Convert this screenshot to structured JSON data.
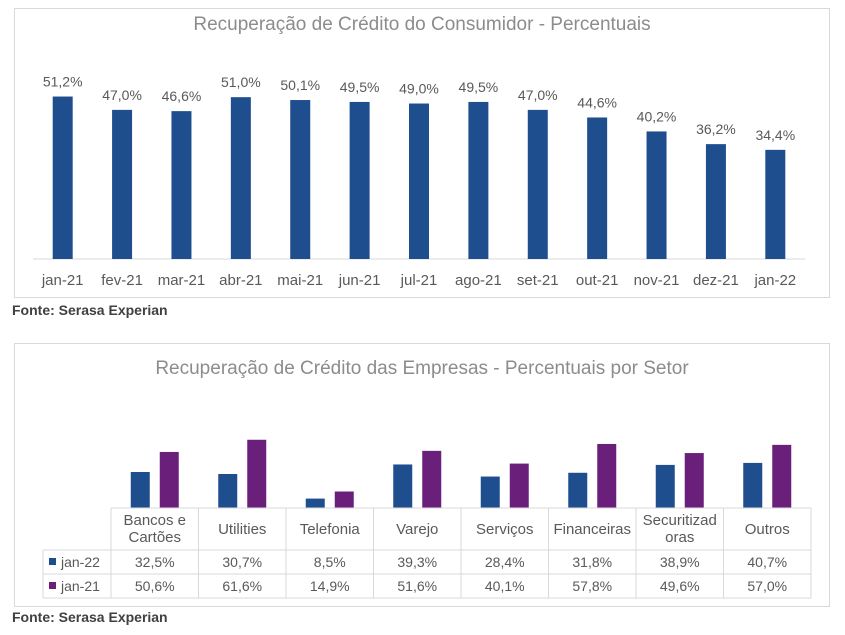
{
  "colors": {
    "consumer_bar": "#1f4e8f",
    "jan22": "#1f4e8f",
    "jan21": "#6a1f7a",
    "text": "#595959",
    "title": "#8c8c8c"
  },
  "source_label_1": "Fonte: Serasa Experian",
  "source_label_2": "Fonte: Serasa Experian",
  "chart_data": [
    {
      "type": "bar",
      "title": "Recuperação de Crédito do Consumidor - Percentuais",
      "categories": [
        "jan-21",
        "fev-21",
        "mar-21",
        "abr-21",
        "mai-21",
        "jun-21",
        "jul-21",
        "ago-21",
        "set-21",
        "out-21",
        "nov-21",
        "dez-21",
        "jan-22"
      ],
      "values": [
        51.2,
        47.0,
        46.6,
        51.0,
        50.1,
        49.5,
        49.0,
        49.5,
        47.0,
        44.6,
        40.2,
        36.2,
        34.4
      ],
      "value_labels": [
        "51,2%",
        "47,0%",
        "46,6%",
        "51,0%",
        "50,1%",
        "49,5%",
        "49,0%",
        "49,5%",
        "47,0%",
        "44,6%",
        "40,2%",
        "36,2%",
        "34,4%"
      ],
      "ylim": [
        0,
        52
      ],
      "grid": false
    },
    {
      "type": "bar",
      "title": "Recuperação de Crédito das Empresas - Percentuais por Setor",
      "categories": [
        [
          "Bancos e",
          "Cartões"
        ],
        [
          "Utilities"
        ],
        [
          "Telefonia"
        ],
        [
          "Varejo"
        ],
        [
          "Serviços"
        ],
        [
          "Financeiras"
        ],
        [
          "Securitizad",
          "oras"
        ],
        [
          "Outros"
        ]
      ],
      "series": [
        {
          "name": "jan-22",
          "values": [
            32.5,
            30.7,
            8.5,
            39.3,
            28.4,
            31.8,
            38.9,
            40.7
          ],
          "labels": [
            "32,5%",
            "30,7%",
            "8,5%",
            "39,3%",
            "28,4%",
            "31,8%",
            "38,9%",
            "40,7%"
          ]
        },
        {
          "name": "jan-21",
          "values": [
            50.6,
            61.6,
            14.9,
            51.6,
            40.1,
            57.8,
            49.6,
            57.0
          ],
          "labels": [
            "50,6%",
            "61,6%",
            "14,9%",
            "51,6%",
            "40,1%",
            "57,8%",
            "49,6%",
            "57,0%"
          ]
        }
      ],
      "ylim": [
        0,
        65
      ],
      "grid": false,
      "legend": "data-table"
    }
  ]
}
